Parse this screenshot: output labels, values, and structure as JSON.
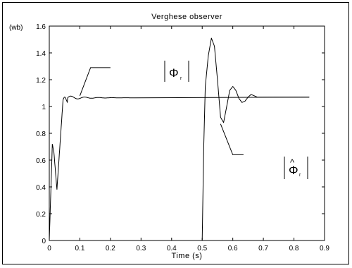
{
  "chart_data": {
    "type": "line",
    "title": "Verghese observer",
    "xlabel": "Time (s)",
    "ylabel": "(wb)",
    "xlim": [
      0,
      0.9
    ],
    "ylim": [
      0,
      1.6
    ],
    "xticks": [
      "0",
      "0.1",
      "0.2",
      "0.3",
      "0.4",
      "0.5",
      "0.6",
      "0.7",
      "0.8",
      "0.9"
    ],
    "yticks": [
      "0",
      "0.2",
      "0.4",
      "0.6",
      "0.8",
      "1",
      "1.2",
      "1.4",
      "1.6"
    ],
    "grid": false,
    "series": [
      {
        "x": [
          0,
          0.1,
          0.2,
          0.3,
          0.4,
          0.5,
          0.6,
          0.7,
          0.8,
          0.85
        ],
        "y": [
          0,
          1.07,
          1.07,
          1.07,
          1.07,
          1.07,
          1.07,
          1.07,
          1.07,
          1.07
        ]
      },
      {
        "x": [
          0.5,
          0.505,
          0.51,
          0.52,
          0.53,
          0.54,
          0.55,
          0.56,
          0.57,
          0.58,
          0.59,
          0.6,
          0.61,
          0.62,
          0.63,
          0.64,
          0.65,
          0.66,
          0.67,
          0.68,
          0.7,
          0.72,
          0.74,
          0.76,
          0.8,
          0.85
        ],
        "y": [
          0.0,
          0.7,
          1.15,
          1.38,
          1.51,
          1.45,
          1.2,
          0.92,
          0.88,
          1.0,
          1.12,
          1.15,
          1.12,
          1.06,
          1.03,
          1.04,
          1.07,
          1.09,
          1.08,
          1.07,
          1.07,
          1.07,
          1.07,
          1.07,
          1.07,
          1.07
        ]
      }
    ],
    "annotations": [
      {
        "text": "|Φr|",
        "point_x": 0.1,
        "point_y": 1.08
      },
      {
        "text": "|Φ̂r|",
        "point_x": 0.56,
        "point_y": 0.87
      }
    ]
  }
}
